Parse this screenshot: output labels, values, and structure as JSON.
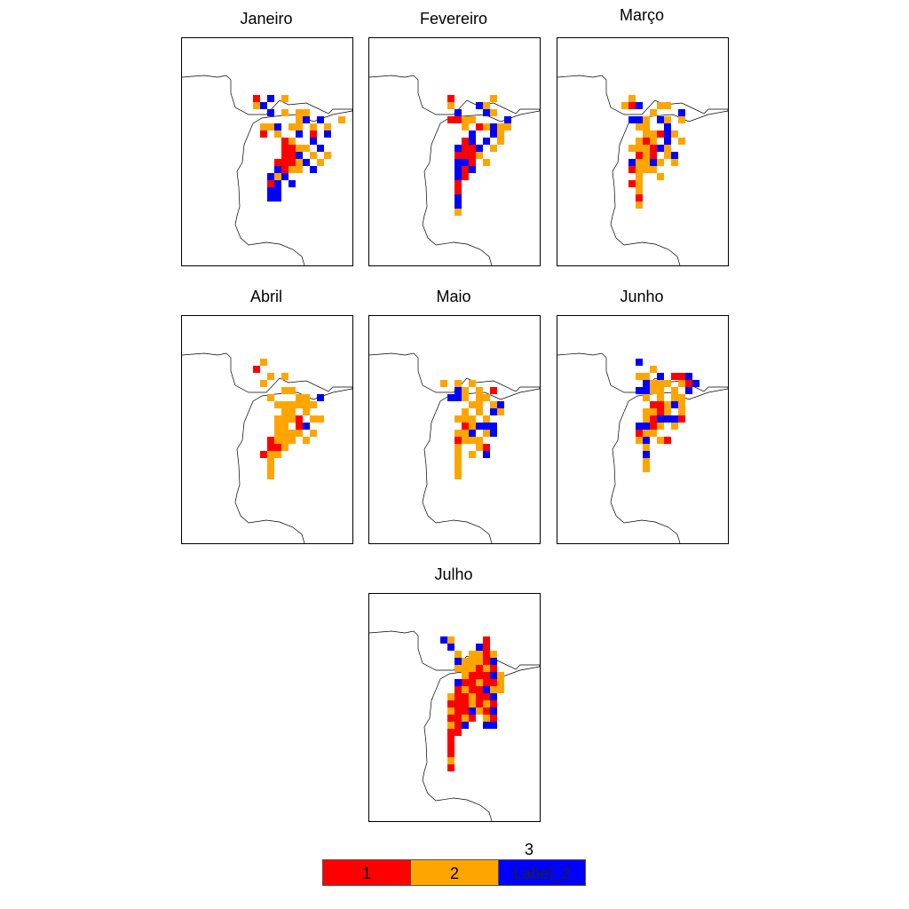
{
  "colors": {
    "cat1": "#ff0000",
    "cat2": "#ffa500",
    "cat3": "#0000ff",
    "coast": "#000000"
  },
  "panels": [
    {
      "title": "Janeiro"
    },
    {
      "title": "Fevereiro"
    },
    {
      "title": "Março"
    },
    {
      "title": "Abril"
    },
    {
      "title": "Maio"
    },
    {
      "title": "Junho"
    },
    {
      "title": "Julho"
    }
  ],
  "legend": {
    "top_label": "3",
    "items": [
      {
        "label": "1",
        "color": "#ff0000"
      },
      {
        "label": "2",
        "color": "#ffa500"
      },
      {
        "label": "Label_2",
        "color": "#0000ff"
      }
    ]
  }
}
